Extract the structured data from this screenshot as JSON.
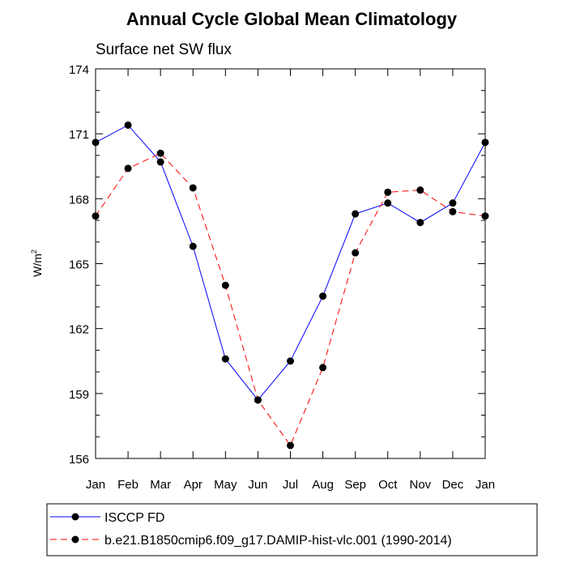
{
  "chart_data": {
    "type": "line",
    "title": "Annual Cycle Global Mean Climatology",
    "subtitle": "Surface net SW flux",
    "ylabel": "W/m",
    "ylabel_sup": "2",
    "xlabel": "",
    "categories": [
      "Jan",
      "Feb",
      "Mar",
      "Apr",
      "May",
      "Jun",
      "Jul",
      "Aug",
      "Sep",
      "Oct",
      "Nov",
      "Dec",
      "Jan"
    ],
    "ylim": [
      156,
      174
    ],
    "yticks": [
      156,
      159,
      162,
      165,
      168,
      171,
      174
    ],
    "grid": false,
    "legend_position": "bottom-left",
    "series": [
      {
        "name": "ISCCP FD",
        "color": "#0000ff",
        "dash": "solid",
        "values": [
          170.6,
          171.4,
          169.7,
          165.8,
          160.6,
          158.7,
          160.5,
          163.5,
          167.3,
          167.8,
          166.9,
          167.8,
          170.6
        ]
      },
      {
        "name": "b.e21.B1850cmip6.f09_g17.DAMIP-hist-vlc.001 (1990-2014)",
        "color": "#ff0000",
        "dash": "dashed",
        "values": [
          167.2,
          169.4,
          170.1,
          168.5,
          164.0,
          158.7,
          156.6,
          160.2,
          165.5,
          168.3,
          168.4,
          167.4,
          167.2
        ]
      }
    ]
  }
}
